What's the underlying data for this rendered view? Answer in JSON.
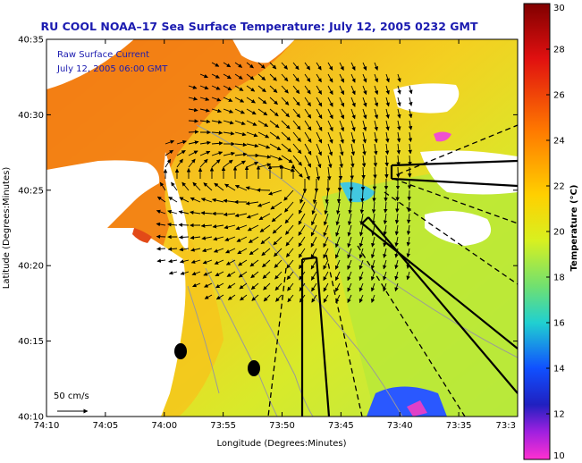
{
  "title": "RU COOL  NOAA–17  Sea Surface Temperature:  July 12, 2005 0232 GMT",
  "map": {
    "x_axis": {
      "label": "Longitude (Degrees:Minutes)",
      "ticks": [
        "74:10",
        "74:05",
        "74:00",
        "73:55",
        "73:50",
        "73:45",
        "73:40",
        "73:35",
        "73:3"
      ]
    },
    "y_axis": {
      "label": "Latitude (Degrees:Minutes)",
      "ticks": [
        "40:35",
        "40:30",
        "40:25",
        "40:20",
        "40:15",
        "40:10"
      ]
    },
    "annotation_line1": "Raw Surface Current",
    "annotation_line2": "July 12, 2005 06:00 GMT",
    "scale_label": "50 cm/s"
  },
  "colorbar": {
    "label": "Temperature (°C)",
    "ticks": [
      "30",
      "28",
      "26",
      "24",
      "22",
      "20",
      "18",
      "16",
      "14",
      "12",
      "10"
    ],
    "range": [
      10,
      30
    ]
  },
  "colors": {
    "title": "#1b1bb0",
    "land": "#ffffff",
    "warm_water": "#f07a10",
    "mid_water": "#f6c81a",
    "cool_water": "#b6e83a"
  }
}
